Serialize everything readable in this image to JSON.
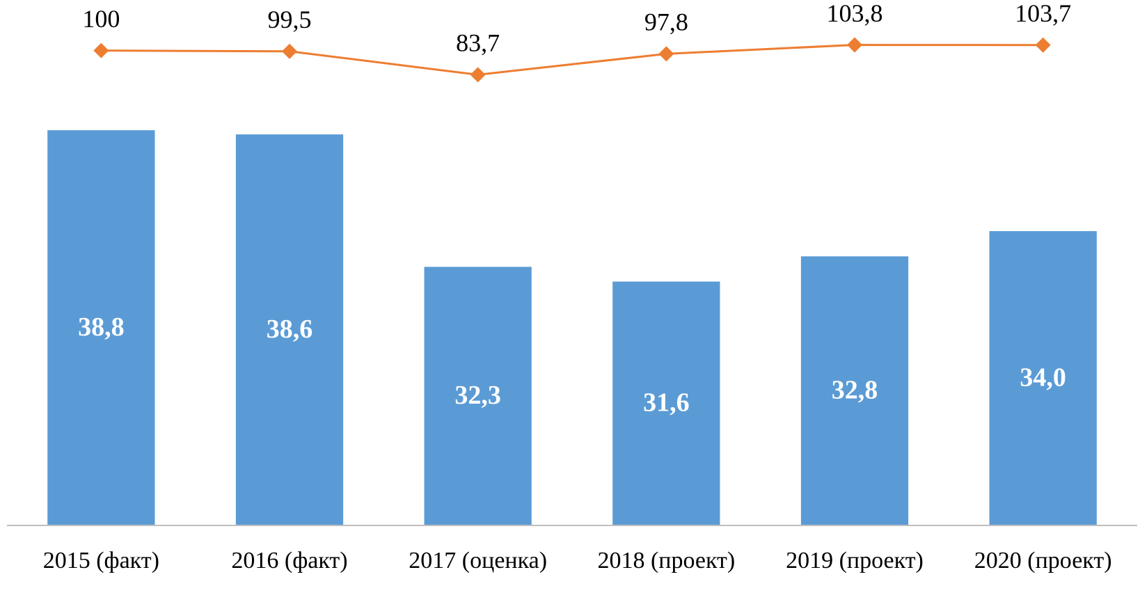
{
  "chart_data": {
    "type": "bar",
    "categories": [
      "2015 (факт)",
      "2016 (факт)",
      "2017 (оценка)",
      "2018 (проект)",
      "2019 (проект)",
      "2020 (проект)"
    ],
    "series": [
      {
        "type": "bar",
        "color": "#5b9bd5",
        "values": [
          38.8,
          38.6,
          32.3,
          31.6,
          32.8,
          34.0
        ],
        "value_labels": [
          "38,8",
          "38,6",
          "32,3",
          "31,6",
          "32,8",
          "34,0"
        ]
      },
      {
        "type": "line",
        "axis": "y2",
        "color": "#ed7d31",
        "values": [
          100,
          99.5,
          83.7,
          97.8,
          103.8,
          103.7
        ],
        "value_labels": [
          "100",
          "99,5",
          "83,7",
          "97,8",
          "103,8",
          "103,7"
        ]
      }
    ],
    "ylim": [
      20,
      44
    ],
    "y2lim": [
      -220,
      120
    ]
  }
}
